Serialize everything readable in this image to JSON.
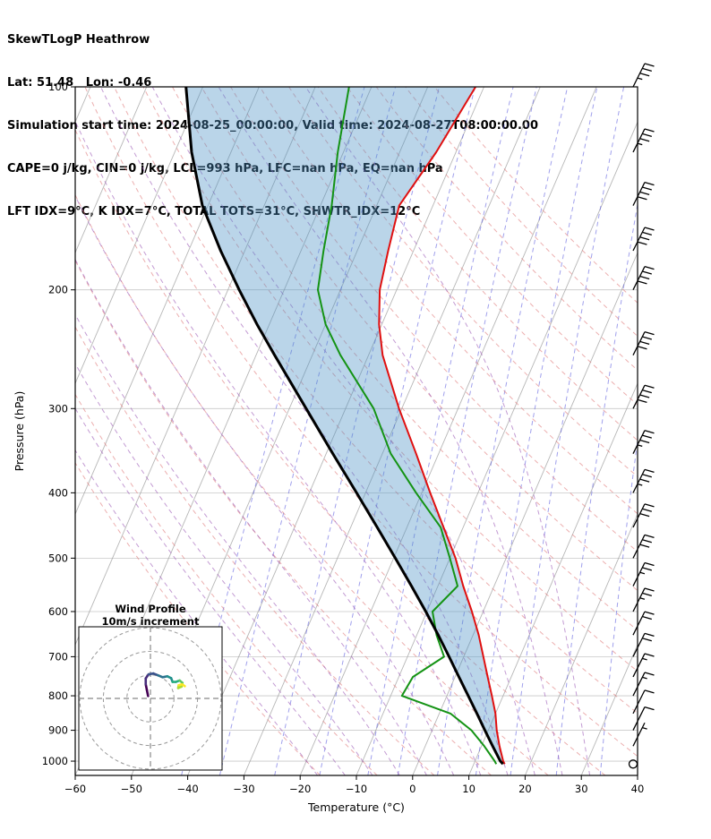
{
  "header": {
    "title": "SkewTLogP Heathrow",
    "location": "Lat: 51.48   Lon: -0.46",
    "times": "Simulation start time: 2024-08-25_00:00:00, Valid time: 2024-08-27T08:00:00.00",
    "stability1": "CAPE=0 j/kg, CIN=0 j/kg, LCL=993 hPa, LFC=nan hPa, EQ=nan hPa",
    "stability2": "LFT IDX=9°C, K IDX=7°C, TOTAL TOTS=31°C, SHWTR_IDX=12°C"
  },
  "chart_data": {
    "type": "line",
    "subtype": "skew-t-log-p",
    "title": "SkewTLogP Heathrow",
    "xlabel": "Temperature (°C)",
    "ylabel": "Pressure (hPa)",
    "xlim": [
      -60,
      40
    ],
    "pressure_lim": [
      1050,
      100
    ],
    "x_ticks": [
      -60,
      -50,
      -40,
      -30,
      -20,
      -10,
      0,
      10,
      20,
      30,
      40
    ],
    "p_ticks": [
      100,
      200,
      300,
      400,
      500,
      600,
      700,
      800,
      900,
      1000
    ],
    "skew_c_per_decade": 51.6,
    "grid": true,
    "background": {
      "grid_color": "#c9c9c9",
      "isotherms_c": [
        -110,
        -100,
        -90,
        -80,
        -70,
        -60,
        -50,
        -40,
        -30,
        -20,
        -10,
        0,
        10,
        20,
        30,
        40
      ],
      "isotherm_color": "#9f9f9f",
      "dry_adiabats_c": [
        -20,
        -10,
        0,
        10,
        20,
        30,
        40,
        50,
        60,
        70,
        80,
        90,
        100,
        110,
        120,
        130,
        140,
        150,
        160
      ],
      "dry_adiabat_color": "#e07a7a",
      "moist_adiabats_c": [
        -20,
        -15,
        -10,
        -5,
        0,
        5,
        10,
        15,
        20,
        25,
        30
      ],
      "moist_adiabat_color": "#9b59b6",
      "mixing_ratios_gkg": [
        0.1,
        0.2,
        0.5,
        1,
        2,
        3,
        5,
        8,
        12,
        20,
        32
      ],
      "mixing_ratio_color": "#5252dd"
    },
    "pressure_levels_hpa": [
      1010,
      1000,
      950,
      900,
      850,
      800,
      750,
      700,
      650,
      600,
      550,
      500,
      450,
      400,
      350,
      300,
      250,
      225,
      200,
      175,
      150,
      125,
      100
    ],
    "series": [
      {
        "name": "temperature",
        "color": "#e01010",
        "width": 2,
        "values_c": [
          15.5,
          15.0,
          13.2,
          11.5,
          10.0,
          8.0,
          5.8,
          3.5,
          1.0,
          -2.0,
          -5.5,
          -9.0,
          -13.5,
          -18.5,
          -24.0,
          -30.5,
          -37.5,
          -40.5,
          -43.0,
          -44.5,
          -46.0,
          -43.5,
          -41.5
        ]
      },
      {
        "name": "dewpoint",
        "color": "#149314",
        "width": 2,
        "values_c": [
          14.0,
          13.5,
          10.5,
          7.0,
          2.0,
          -8.0,
          -7.5,
          -3.5,
          -6.5,
          -9.0,
          -6.5,
          -10.0,
          -14.0,
          -21.0,
          -28.5,
          -35.0,
          -45.0,
          -50.0,
          -54.0,
          -56.0,
          -58.0,
          -61.0,
          -64.0
        ]
      },
      {
        "name": "parcel",
        "color": "#000000",
        "width": 3,
        "values_c": [
          15.2,
          14.5,
          12.0,
          9.4,
          6.7,
          3.8,
          0.7,
          -2.6,
          -6.2,
          -10.2,
          -14.7,
          -19.7,
          -25.3,
          -31.6,
          -38.8,
          -47.0,
          -56.7,
          -62.2,
          -68.0,
          -74.3,
          -81.0,
          -87.0,
          -93.0
        ]
      }
    ],
    "cape_fill": {
      "between": [
        "parcel",
        "temperature"
      ],
      "color": "#4a90c4",
      "opacity": 0.38
    },
    "wind_barbs": {
      "color": "#000000",
      "full_barb_ms": 10,
      "calm_level_hpa": 1010,
      "levels_p_speed": [
        [
          950,
          5
        ],
        [
          900,
          8
        ],
        [
          850,
          10
        ],
        [
          800,
          13
        ],
        [
          750,
          15
        ],
        [
          700,
          18
        ],
        [
          650,
          20
        ],
        [
          600,
          23
        ],
        [
          550,
          25
        ],
        [
          500,
          28
        ],
        [
          450,
          30
        ],
        [
          400,
          33
        ],
        [
          350,
          35
        ],
        [
          300,
          38
        ],
        [
          250,
          40
        ],
        [
          200,
          42
        ],
        [
          175,
          40
        ],
        [
          150,
          38
        ],
        [
          125,
          35
        ],
        [
          100,
          33
        ]
      ]
    },
    "hodograph": {
      "title": "Wind Profile",
      "subtitle": "10m/s increment",
      "ring_interval_ms": 10,
      "rings_ms": [
        10,
        20,
        30
      ],
      "trace_uv_ms": [
        [
          -1.0,
          1.0
        ],
        [
          -1.5,
          3.5
        ],
        [
          -2.0,
          6.0
        ],
        [
          -2.0,
          8.5
        ],
        [
          -0.8,
          10.2
        ],
        [
          1.2,
          10.6
        ],
        [
          3.2,
          9.8
        ],
        [
          5.2,
          9.0
        ],
        [
          7.2,
          9.4
        ],
        [
          8.8,
          8.6
        ],
        [
          9.4,
          7.0
        ],
        [
          10.8,
          7.0
        ],
        [
          12.4,
          7.6
        ],
        [
          13.6,
          6.6
        ],
        [
          13.2,
          5.0
        ],
        [
          11.8,
          4.4
        ],
        [
          12.0,
          5.6
        ],
        [
          13.4,
          6.0
        ],
        [
          14.6,
          5.2
        ]
      ],
      "colormap": [
        "#440154",
        "#472d7b",
        "#3b528b",
        "#2c728e",
        "#21918c",
        "#28ae80",
        "#5ec962",
        "#addc30",
        "#fde725"
      ]
    }
  }
}
